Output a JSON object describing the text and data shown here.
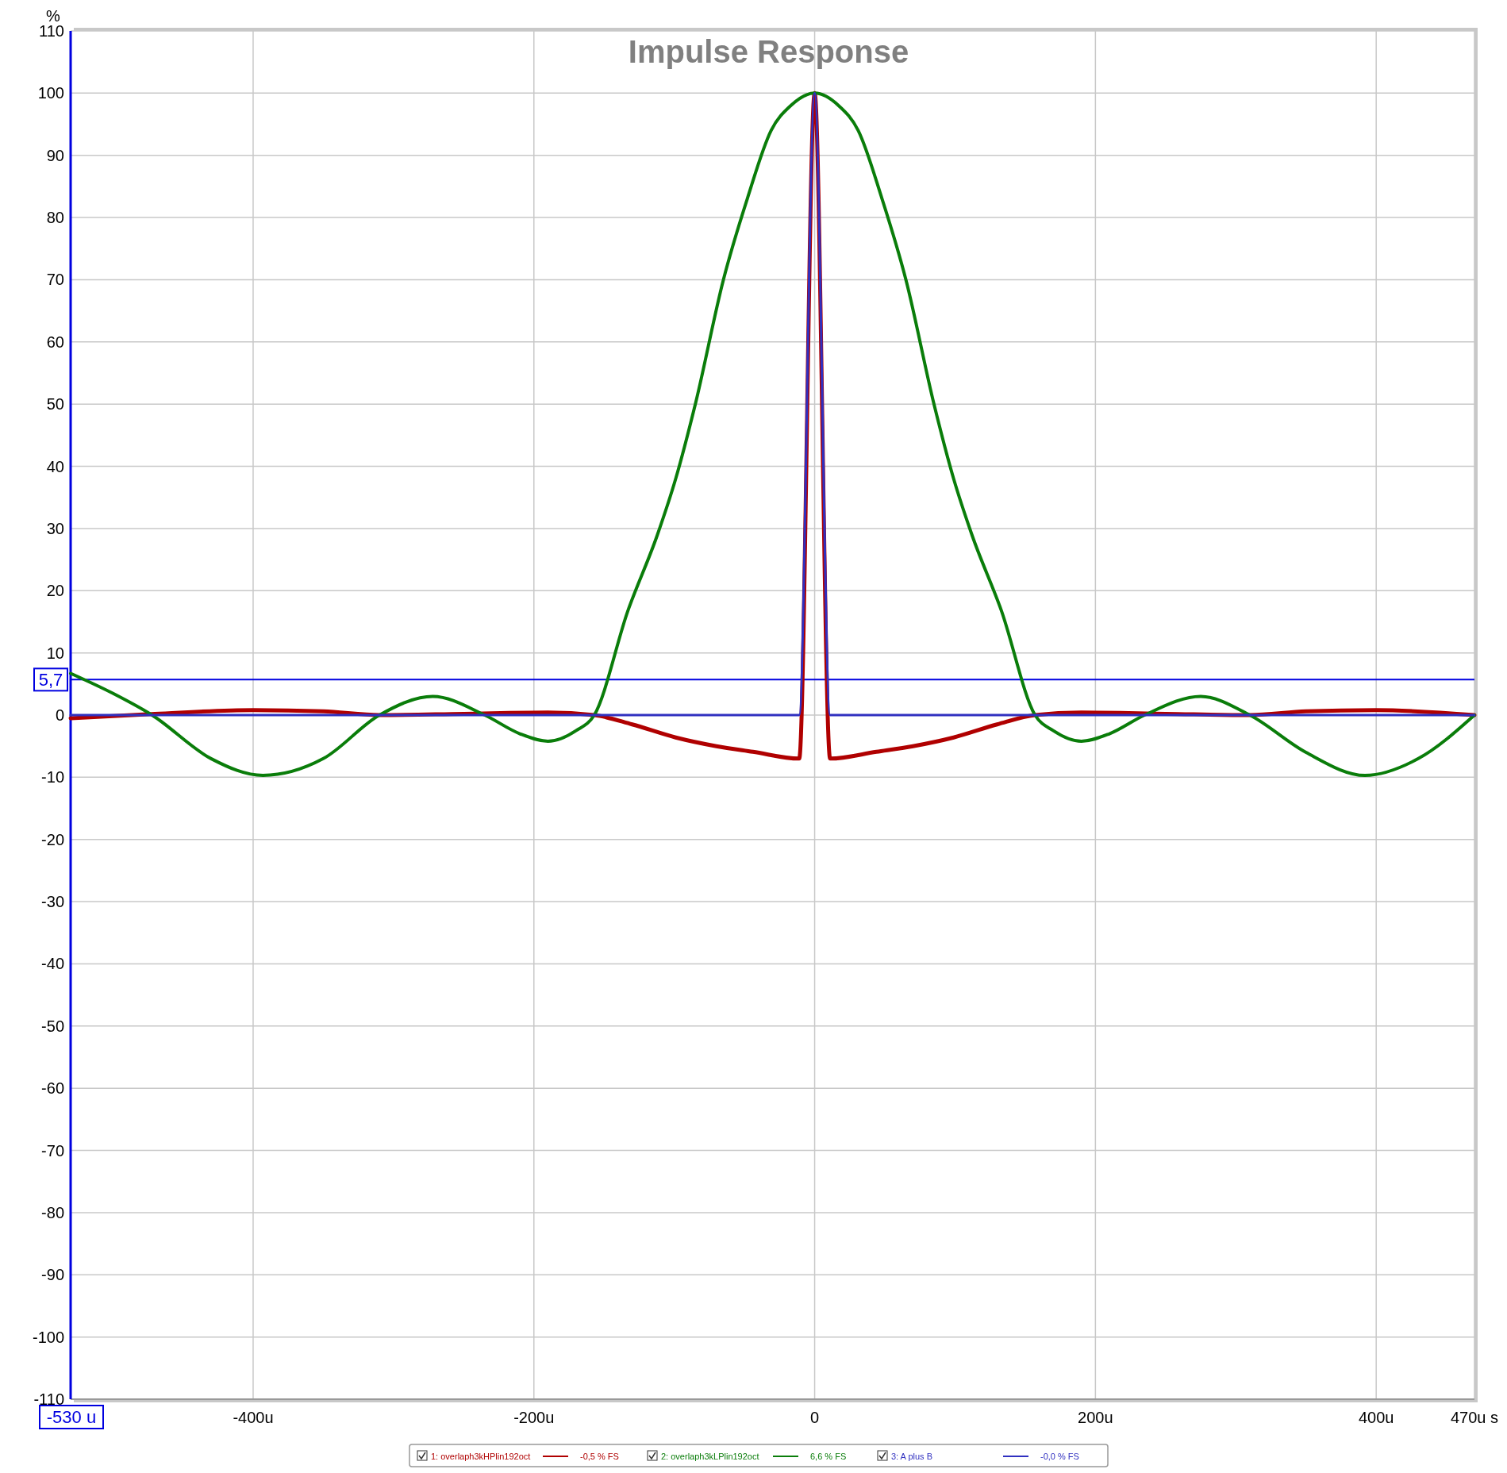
{
  "chart_data": {
    "type": "line",
    "title": "Impulse Response",
    "ylabel": "%",
    "xlim": [
      -530,
      470
    ],
    "ylim": [
      -110,
      110
    ],
    "xticks": [
      {
        "value": -530,
        "label": "-530 u"
      },
      {
        "value": -400,
        "label": "-400u"
      },
      {
        "value": -200,
        "label": "-200u"
      },
      0,
      {
        "value": 200,
        "label": "200u"
      },
      {
        "value": 400,
        "label": "400u"
      },
      {
        "value": 470,
        "label": "470u s"
      }
    ],
    "yticks": [
      -110,
      -100,
      -90,
      -80,
      -70,
      -60,
      -50,
      -40,
      -30,
      -20,
      -10,
      0,
      10,
      20,
      30,
      40,
      50,
      60,
      70,
      80,
      90,
      100,
      110
    ],
    "grid": true,
    "legend": "bottom",
    "marker": "none",
    "line_style": "solid",
    "ref_lines": [
      {
        "axis": "y",
        "value": 5.7,
        "label": "5,7",
        "color": "#0000e0"
      }
    ],
    "annotations": [
      "-0,5 % FS",
      "6,6 % FS",
      "-0,0 % FS"
    ],
    "series": [
      {
        "name": "1: overlaph3kHPlin192oct",
        "color": "#b00000",
        "x": [
          -530,
          -470,
          -400,
          -350,
          -310,
          -250,
          -190,
          -157,
          -130,
          -99,
          -70,
          -44,
          -11,
          0,
          11,
          44,
          70,
          99,
          130,
          157,
          190,
          250,
          310,
          350,
          400,
          470
        ],
        "values": [
          -0.5,
          0.2,
          0.8,
          0.6,
          0,
          0.2,
          0.4,
          0,
          -1.5,
          -3.6,
          -5,
          -5.9,
          -7,
          100,
          -7,
          -5.9,
          -5,
          -3.6,
          -1.5,
          0,
          0.4,
          0.2,
          0,
          0.6,
          0.8,
          0
        ]
      },
      {
        "name": "2: overlaph3kLPlin192oct",
        "color": "#0a7d0a",
        "x": [
          -530,
          -500,
          -472,
          -430,
          -393,
          -350,
          -310,
          -272,
          -235,
          -210,
          -190,
          -170,
          -157,
          -133,
          -112,
          -99,
          -85,
          -65,
          -48,
          -31,
          -17,
          0,
          17,
          31,
          48,
          65,
          85,
          99,
          112,
          133,
          157,
          170,
          190,
          210,
          235,
          275,
          310,
          350,
          392,
          430,
          470
        ],
        "values": [
          6.7,
          3.5,
          0,
          -7,
          -9.7,
          -7,
          0,
          3,
          0,
          -3,
          -4.2,
          -2.5,
          0,
          16.8,
          29,
          38,
          50,
          70,
          83,
          94,
          98,
          100,
          98,
          94,
          83,
          70,
          50,
          38,
          29,
          16.8,
          0,
          -2.5,
          -4.2,
          -3,
          0,
          3,
          0,
          -6,
          -9.7,
          -7,
          0
        ]
      },
      {
        "name": "3: A plus B",
        "color": "#3030c0",
        "x": [
          -530,
          -11,
          0,
          11,
          470
        ],
        "values": [
          0,
          0,
          100,
          0,
          0
        ]
      }
    ]
  }
}
